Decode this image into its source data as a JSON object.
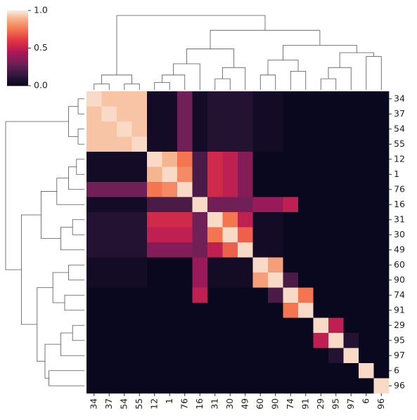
{
  "chart_data": {
    "type": "heatmap",
    "x_categories": [
      "34",
      "37",
      "54",
      "55",
      "12",
      "1",
      "76",
      "16",
      "31",
      "30",
      "49",
      "60",
      "90",
      "74",
      "91",
      "29",
      "95",
      "97",
      "6",
      "96"
    ],
    "y_categories": [
      "34",
      "37",
      "54",
      "55",
      "12",
      "1",
      "76",
      "16",
      "31",
      "30",
      "49",
      "60",
      "90",
      "74",
      "91",
      "29",
      "95",
      "97",
      "6",
      "96"
    ],
    "values": [
      [
        0.97,
        0.93,
        0.93,
        0.93,
        0.05,
        0.05,
        0.3,
        0.05,
        0.1,
        0.1,
        0.1,
        0.05,
        0.05,
        0.02,
        0.02,
        0.02,
        0.02,
        0.02,
        0.02,
        0.02
      ],
      [
        0.93,
        0.97,
        0.93,
        0.93,
        0.05,
        0.05,
        0.3,
        0.05,
        0.1,
        0.1,
        0.1,
        0.05,
        0.05,
        0.02,
        0.02,
        0.02,
        0.02,
        0.02,
        0.02,
        0.02
      ],
      [
        0.93,
        0.93,
        0.97,
        0.93,
        0.05,
        0.05,
        0.3,
        0.05,
        0.1,
        0.1,
        0.1,
        0.05,
        0.05,
        0.02,
        0.02,
        0.02,
        0.02,
        0.02,
        0.02,
        0.02
      ],
      [
        0.93,
        0.93,
        0.93,
        0.97,
        0.05,
        0.05,
        0.3,
        0.05,
        0.1,
        0.1,
        0.1,
        0.05,
        0.05,
        0.02,
        0.02,
        0.02,
        0.02,
        0.02,
        0.02,
        0.02
      ],
      [
        0.05,
        0.05,
        0.05,
        0.05,
        0.97,
        0.9,
        0.75,
        0.2,
        0.55,
        0.5,
        0.35,
        0.02,
        0.02,
        0.02,
        0.02,
        0.02,
        0.02,
        0.02,
        0.02,
        0.02
      ],
      [
        0.05,
        0.05,
        0.05,
        0.05,
        0.9,
        0.97,
        0.8,
        0.2,
        0.55,
        0.5,
        0.35,
        0.02,
        0.02,
        0.02,
        0.02,
        0.02,
        0.02,
        0.02,
        0.02,
        0.02
      ],
      [
        0.3,
        0.3,
        0.3,
        0.3,
        0.75,
        0.8,
        0.97,
        0.2,
        0.55,
        0.5,
        0.35,
        0.02,
        0.02,
        0.02,
        0.02,
        0.02,
        0.02,
        0.02,
        0.02,
        0.02
      ],
      [
        0.05,
        0.05,
        0.05,
        0.05,
        0.2,
        0.2,
        0.2,
        0.97,
        0.3,
        0.3,
        0.3,
        0.4,
        0.4,
        0.5,
        0.02,
        0.02,
        0.02,
        0.02,
        0.02,
        0.02
      ],
      [
        0.1,
        0.1,
        0.1,
        0.1,
        0.55,
        0.55,
        0.55,
        0.3,
        0.97,
        0.75,
        0.5,
        0.05,
        0.05,
        0.02,
        0.02,
        0.02,
        0.02,
        0.02,
        0.02,
        0.02
      ],
      [
        0.1,
        0.1,
        0.1,
        0.1,
        0.5,
        0.5,
        0.5,
        0.3,
        0.75,
        0.97,
        0.7,
        0.05,
        0.05,
        0.02,
        0.02,
        0.02,
        0.02,
        0.02,
        0.02,
        0.02
      ],
      [
        0.1,
        0.1,
        0.1,
        0.1,
        0.35,
        0.35,
        0.35,
        0.3,
        0.5,
        0.7,
        0.97,
        0.05,
        0.05,
        0.02,
        0.02,
        0.02,
        0.02,
        0.02,
        0.02,
        0.02
      ],
      [
        0.05,
        0.05,
        0.05,
        0.05,
        0.02,
        0.02,
        0.02,
        0.4,
        0.05,
        0.05,
        0.05,
        0.97,
        0.85,
        0.02,
        0.02,
        0.02,
        0.02,
        0.02,
        0.02,
        0.02
      ],
      [
        0.05,
        0.05,
        0.05,
        0.05,
        0.02,
        0.02,
        0.02,
        0.4,
        0.05,
        0.05,
        0.05,
        0.85,
        0.97,
        0.2,
        0.02,
        0.02,
        0.02,
        0.02,
        0.02,
        0.02
      ],
      [
        0.02,
        0.02,
        0.02,
        0.02,
        0.02,
        0.02,
        0.02,
        0.5,
        0.02,
        0.02,
        0.02,
        0.02,
        0.2,
        0.97,
        0.75,
        0.02,
        0.02,
        0.02,
        0.02,
        0.02
      ],
      [
        0.02,
        0.02,
        0.02,
        0.02,
        0.02,
        0.02,
        0.02,
        0.02,
        0.02,
        0.02,
        0.02,
        0.02,
        0.02,
        0.75,
        0.97,
        0.02,
        0.02,
        0.02,
        0.02,
        0.02
      ],
      [
        0.02,
        0.02,
        0.02,
        0.02,
        0.02,
        0.02,
        0.02,
        0.02,
        0.02,
        0.02,
        0.02,
        0.02,
        0.02,
        0.02,
        0.02,
        0.97,
        0.5,
        0.02,
        0.02,
        0.02
      ],
      [
        0.02,
        0.02,
        0.02,
        0.02,
        0.02,
        0.02,
        0.02,
        0.02,
        0.02,
        0.02,
        0.02,
        0.02,
        0.02,
        0.02,
        0.02,
        0.5,
        0.97,
        0.1,
        0.02,
        0.02
      ],
      [
        0.02,
        0.02,
        0.02,
        0.02,
        0.02,
        0.02,
        0.02,
        0.02,
        0.02,
        0.02,
        0.02,
        0.02,
        0.02,
        0.02,
        0.02,
        0.02,
        0.1,
        0.97,
        0.02,
        0.02
      ],
      [
        0.02,
        0.02,
        0.02,
        0.02,
        0.02,
        0.02,
        0.02,
        0.02,
        0.02,
        0.02,
        0.02,
        0.02,
        0.02,
        0.02,
        0.02,
        0.02,
        0.02,
        0.02,
        0.97,
        0.02
      ],
      [
        0.02,
        0.02,
        0.02,
        0.02,
        0.02,
        0.02,
        0.02,
        0.02,
        0.02,
        0.02,
        0.02,
        0.02,
        0.02,
        0.02,
        0.02,
        0.02,
        0.02,
        0.02,
        0.02,
        0.97
      ]
    ],
    "clim": [
      0,
      1
    ],
    "cticks": [
      {
        "value": 0,
        "label": "0.0"
      },
      {
        "value": 0.5,
        "label": "0.5"
      },
      {
        "value": 1,
        "label": "1.0"
      }
    ],
    "colormap": "rocket"
  }
}
